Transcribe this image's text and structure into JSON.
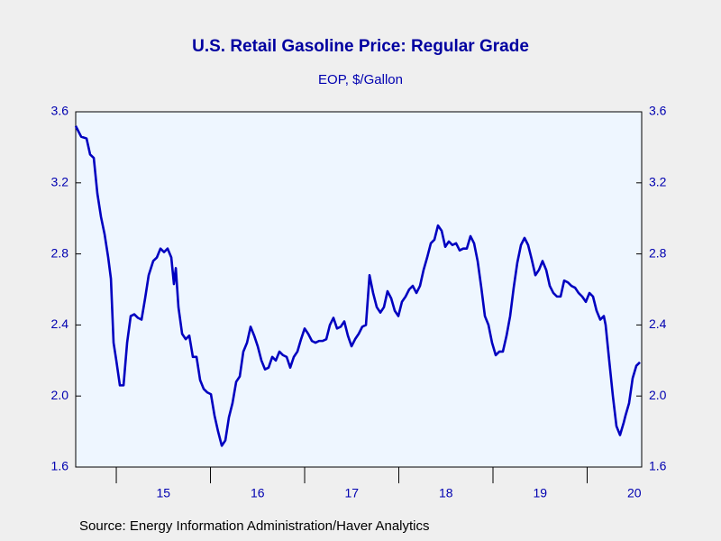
{
  "chart_data": {
    "type": "line",
    "title": "U.S. Retail Gasoline Price: Regular Grade",
    "subtitle": "EOP, $/Gallon",
    "source": "Source:  Energy Information Administration/Haver Analytics",
    "x": [
      2014.569,
      2014.627,
      2014.684,
      2014.722,
      2014.761,
      2014.799,
      2014.837,
      2014.876,
      2014.914,
      2014.943,
      2014.971,
      2015.0,
      2015.038,
      2015.077,
      2015.115,
      2015.153,
      2015.191,
      2015.23,
      2015.268,
      2015.306,
      2015.344,
      2015.392,
      2015.431,
      2015.469,
      2015.507,
      2015.545,
      2015.584,
      2015.612,
      2015.632,
      2015.66,
      2015.699,
      2015.737,
      2015.775,
      2015.813,
      2015.852,
      2015.89,
      2015.928,
      2015.967,
      2016.005,
      2016.043,
      2016.081,
      2016.12,
      2016.158,
      2016.196,
      2016.234,
      2016.273,
      2016.311,
      2016.349,
      2016.388,
      2016.426,
      2016.464,
      2016.502,
      2016.541,
      2016.579,
      2016.617,
      2016.656,
      2016.694,
      2016.732,
      2016.77,
      2016.809,
      2016.847,
      2016.885,
      2016.923,
      2016.962,
      2017.0,
      2017.038,
      2017.077,
      2017.115,
      2017.153,
      2017.191,
      2017.23,
      2017.268,
      2017.306,
      2017.344,
      2017.383,
      2017.421,
      2017.459,
      2017.498,
      2017.536,
      2017.574,
      2017.612,
      2017.651,
      2017.689,
      2017.727,
      2017.766,
      2017.804,
      2017.842,
      2017.88,
      2017.919,
      2017.957,
      2017.995,
      2018.033,
      2018.072,
      2018.11,
      2018.148,
      2018.187,
      2018.225,
      2018.263,
      2018.301,
      2018.34,
      2018.378,
      2018.416,
      2018.455,
      2018.493,
      2018.531,
      2018.569,
      2018.608,
      2018.646,
      2018.684,
      2018.722,
      2018.761,
      2018.799,
      2018.837,
      2018.876,
      2018.914,
      2018.952,
      2018.99,
      2019.029,
      2019.067,
      2019.105,
      2019.144,
      2019.182,
      2019.22,
      2019.258,
      2019.297,
      2019.335,
      2019.373,
      2019.411,
      2019.45,
      2019.488,
      2019.526,
      2019.565,
      2019.603,
      2019.641,
      2019.679,
      2019.718,
      2019.756,
      2019.794,
      2019.833,
      2019.871,
      2019.909,
      2019.947,
      2019.986,
      2020.024,
      2020.062,
      2020.1,
      2020.139,
      2020.177,
      2020.196,
      2020.234,
      2020.273,
      2020.311,
      2020.349,
      2020.388,
      2020.407,
      2020.445,
      2020.483,
      2020.522,
      2020.56
    ],
    "series": [
      {
        "color": "#0000c0",
        "values": [
          3.52,
          3.46,
          3.45,
          3.36,
          3.34,
          3.14,
          3.01,
          2.91,
          2.78,
          2.66,
          2.3,
          2.2,
          2.06,
          2.06,
          2.3,
          2.45,
          2.46,
          2.44,
          2.43,
          2.55,
          2.68,
          2.76,
          2.78,
          2.83,
          2.81,
          2.83,
          2.78,
          2.63,
          2.72,
          2.5,
          2.35,
          2.32,
          2.34,
          2.22,
          2.22,
          2.09,
          2.04,
          2.02,
          2.01,
          1.89,
          1.8,
          1.72,
          1.75,
          1.88,
          1.96,
          2.08,
          2.11,
          2.25,
          2.3,
          2.39,
          2.34,
          2.28,
          2.2,
          2.15,
          2.16,
          2.22,
          2.2,
          2.25,
          2.23,
          2.22,
          2.16,
          2.22,
          2.25,
          2.32,
          2.38,
          2.35,
          2.31,
          2.3,
          2.31,
          2.31,
          2.32,
          2.4,
          2.44,
          2.38,
          2.39,
          2.42,
          2.34,
          2.28,
          2.32,
          2.35,
          2.39,
          2.4,
          2.68,
          2.58,
          2.5,
          2.47,
          2.5,
          2.59,
          2.55,
          2.48,
          2.45,
          2.53,
          2.56,
          2.6,
          2.62,
          2.58,
          2.62,
          2.71,
          2.78,
          2.86,
          2.88,
          2.96,
          2.93,
          2.84,
          2.87,
          2.85,
          2.86,
          2.82,
          2.83,
          2.83,
          2.9,
          2.86,
          2.76,
          2.61,
          2.45,
          2.4,
          2.3,
          2.23,
          2.25,
          2.25,
          2.34,
          2.45,
          2.61,
          2.75,
          2.85,
          2.89,
          2.85,
          2.77,
          2.68,
          2.71,
          2.76,
          2.71,
          2.62,
          2.58,
          2.56,
          2.56,
          2.65,
          2.64,
          2.62,
          2.61,
          2.58,
          2.56,
          2.53,
          2.58,
          2.56,
          2.48,
          2.43,
          2.45,
          2.4,
          2.2,
          2.0,
          1.83,
          1.78,
          1.85,
          1.89,
          1.96,
          2.1,
          2.17,
          2.19
        ]
      }
    ],
    "xlim": [
      2014.569,
      2020.579
    ],
    "xticks": [
      {
        "value": 2015.5,
        "label": "15"
      },
      {
        "value": 2016.5,
        "label": "16"
      },
      {
        "value": 2017.5,
        "label": "17"
      },
      {
        "value": 2018.5,
        "label": "18"
      },
      {
        "value": 2019.5,
        "label": "19"
      },
      {
        "value": 2020.5,
        "label": "20"
      }
    ],
    "xtick_marks": [
      2015,
      2016,
      2017,
      2018,
      2019,
      2020
    ],
    "ylim": [
      1.6,
      3.6
    ],
    "yticks": [
      1.6,
      {
        "value": 2,
        "label": "2.0"
      },
      2.4,
      2.8,
      3.2,
      3.6
    ],
    "grid": false
  }
}
